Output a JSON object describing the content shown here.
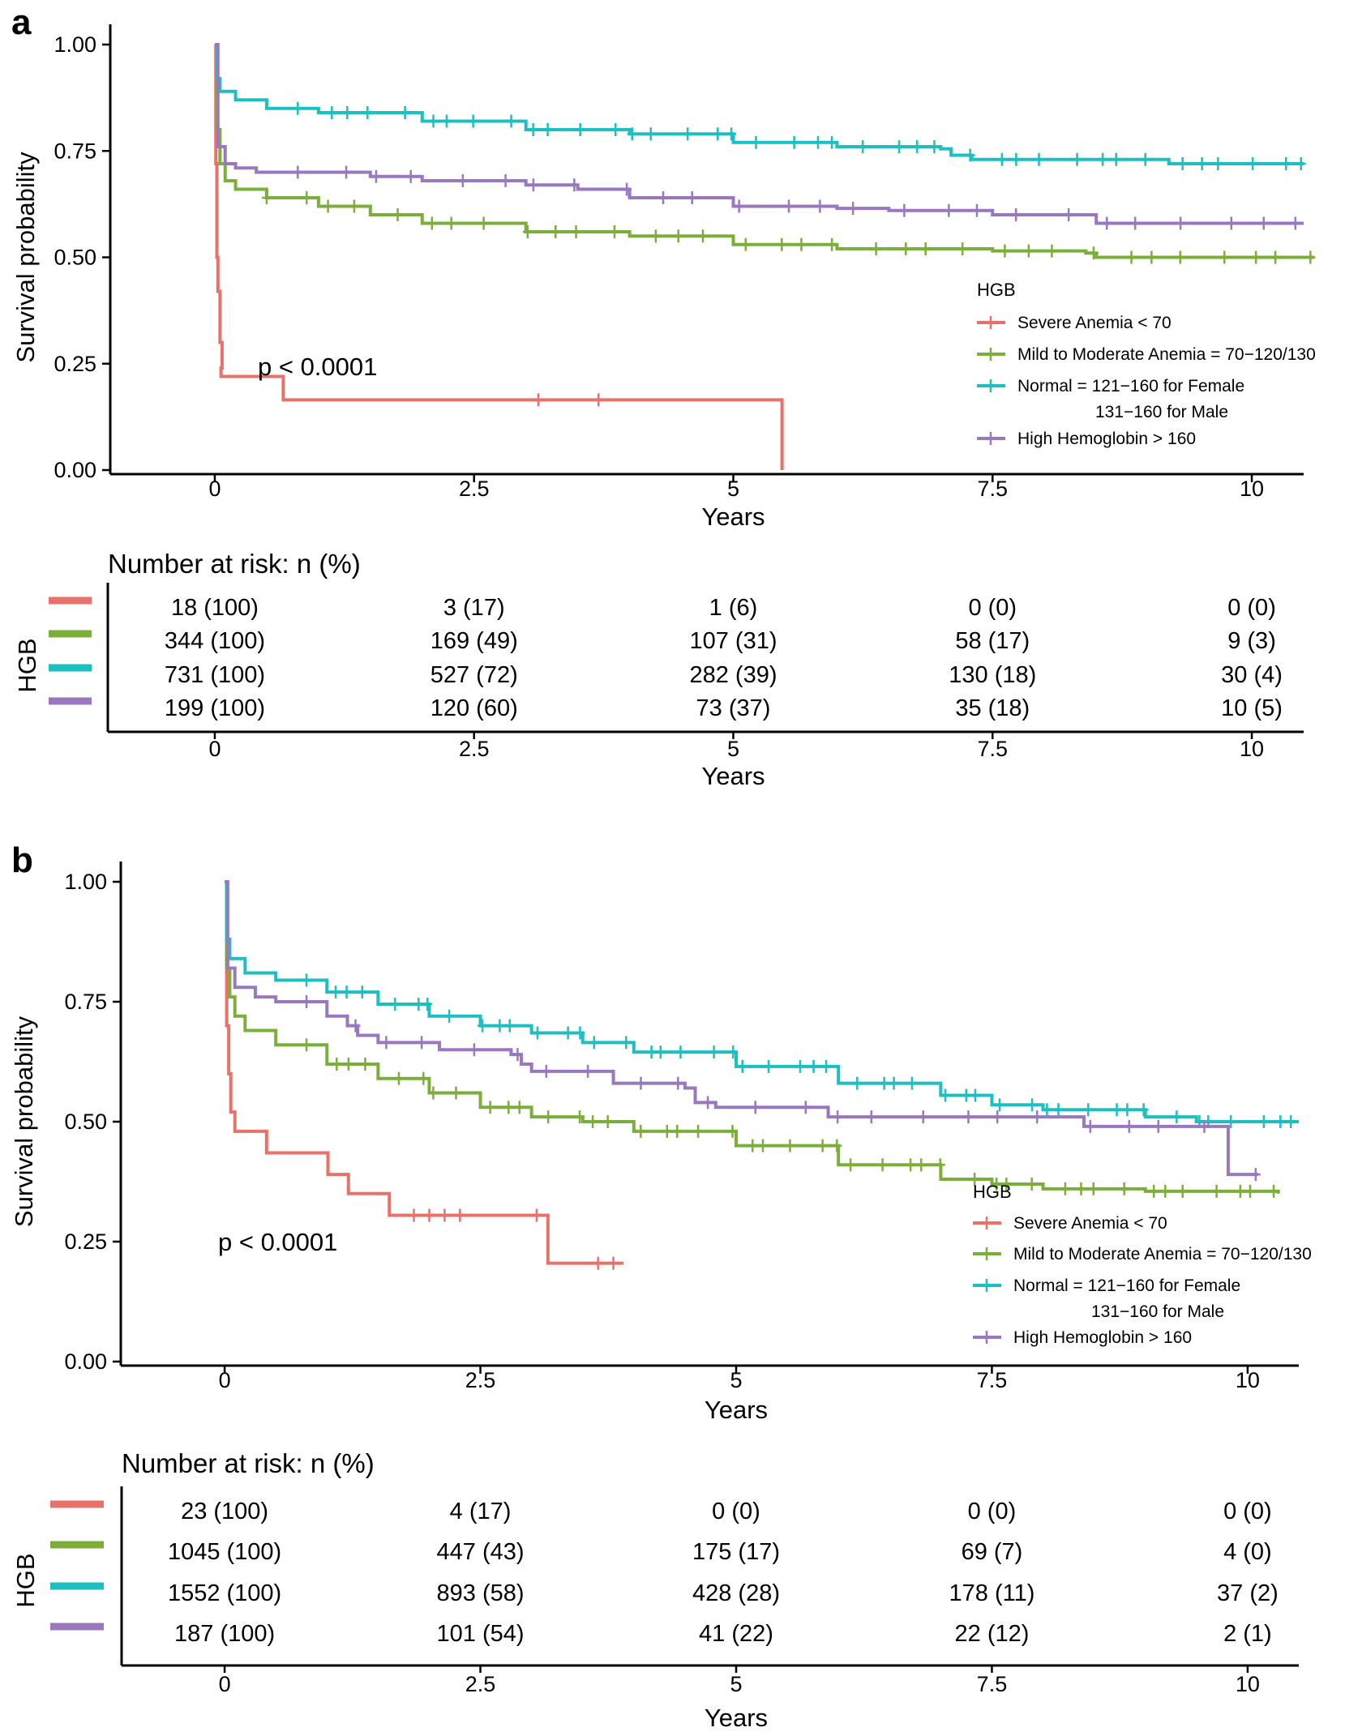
{
  "colors": {
    "severe": "#E8716A",
    "mild": "#7CAE3A",
    "normal": "#1DBFC0",
    "high": "#9A78C0"
  },
  "chart_data": [
    {
      "type": "line",
      "subtype": "kaplan-meier",
      "panel_label": "a",
      "ylabel": "Survival probability",
      "xlabel": "Years",
      "xlim": [
        -0.5,
        10.5
      ],
      "ylim": [
        0,
        1
      ],
      "x_ticks": [
        "0",
        "2.5",
        "5",
        "7.5",
        "10"
      ],
      "y_ticks": [
        "0.00",
        "0.25",
        "0.50",
        "0.75",
        "1.00"
      ],
      "p_value": "p < 0.0001",
      "legend_title": "HGB",
      "legend_position": "right",
      "series": [
        {
          "key": "severe",
          "name": "Severe Anemia < 70",
          "points": [
            [
              0,
              1.0
            ],
            [
              0.01,
              0.72
            ],
            [
              0.02,
              0.5
            ],
            [
              0.03,
              0.42
            ],
            [
              0.05,
              0.3
            ],
            [
              0.07,
              0.24
            ],
            [
              0.06,
              0.22
            ],
            [
              0.65,
              0.22
            ],
            [
              0.66,
              0.165
            ],
            [
              5.47,
              0.165
            ],
            [
              5.47,
              0.0
            ]
          ],
          "censor": [
            3.12,
            3.7
          ]
        },
        {
          "key": "mild",
          "name": "Mild to Moderate Anemia = 70−120/130",
          "points": [
            [
              0,
              1.0
            ],
            [
              0.02,
              0.8
            ],
            [
              0.05,
              0.72
            ],
            [
              0.1,
              0.68
            ],
            [
              0.2,
              0.66
            ],
            [
              0.5,
              0.64
            ],
            [
              1.0,
              0.62
            ],
            [
              1.5,
              0.6
            ],
            [
              2.0,
              0.58
            ],
            [
              3.0,
              0.56
            ],
            [
              4.0,
              0.55
            ],
            [
              5.0,
              0.53
            ],
            [
              6.0,
              0.52
            ],
            [
              7.5,
              0.515
            ],
            [
              8.4,
              0.51
            ],
            [
              8.5,
              0.5
            ],
            [
              10.6,
              0.5
            ]
          ],
          "censor_range": [
            0.5,
            10.6
          ],
          "censor_count": 34
        },
        {
          "key": "normal",
          "name": "Normal = 121−160  for Female\n131−160  for Male",
          "label_line1": "Normal = 121−160  for Female",
          "label_line2": "131−160  for Male",
          "points": [
            [
              0,
              1.0
            ],
            [
              0.02,
              0.92
            ],
            [
              0.05,
              0.89
            ],
            [
              0.2,
              0.87
            ],
            [
              0.5,
              0.85
            ],
            [
              1.0,
              0.84
            ],
            [
              2.0,
              0.82
            ],
            [
              3.0,
              0.8
            ],
            [
              4.0,
              0.79
            ],
            [
              5.0,
              0.77
            ],
            [
              6.0,
              0.76
            ],
            [
              7.0,
              0.755
            ],
            [
              7.1,
              0.74
            ],
            [
              7.3,
              0.73
            ],
            [
              9.0,
              0.73
            ],
            [
              9.2,
              0.72
            ],
            [
              10.5,
              0.72
            ]
          ],
          "censor_range": [
            0.8,
            10.5
          ],
          "censor_count": 40
        },
        {
          "key": "high",
          "name": "High Hemoglobin > 160",
          "points": [
            [
              0,
              1.0
            ],
            [
              0.03,
              0.76
            ],
            [
              0.1,
              0.72
            ],
            [
              0.2,
              0.71
            ],
            [
              0.4,
              0.7
            ],
            [
              1.5,
              0.69
            ],
            [
              2.0,
              0.68
            ],
            [
              3.0,
              0.67
            ],
            [
              3.5,
              0.66
            ],
            [
              4.0,
              0.64
            ],
            [
              5.0,
              0.62
            ],
            [
              6.0,
              0.615
            ],
            [
              6.5,
              0.61
            ],
            [
              7.5,
              0.6
            ],
            [
              8.4,
              0.6
            ],
            [
              8.5,
              0.58
            ],
            [
              10.5,
              0.58
            ]
          ],
          "censor_range": [
            0.8,
            10.5
          ],
          "censor_count": 26
        }
      ],
      "risk_table": {
        "title": "Number at risk: n (%)",
        "group_label": "HGB",
        "xlabel": "Years",
        "rows": [
          {
            "key": "severe",
            "values": [
              "18 (100)",
              "3 (17)",
              "1 (6)",
              "0 (0)",
              "0 (0)"
            ]
          },
          {
            "key": "mild",
            "values": [
              "344 (100)",
              "169 (49)",
              "107 (31)",
              "58 (17)",
              "9 (3)"
            ]
          },
          {
            "key": "normal",
            "values": [
              "731 (100)",
              "527 (72)",
              "282 (39)",
              "130 (18)",
              "30 (4)"
            ]
          },
          {
            "key": "high",
            "values": [
              "199 (100)",
              "120 (60)",
              "73 (37)",
              "35 (18)",
              "10 (5)"
            ]
          }
        ]
      }
    },
    {
      "type": "line",
      "subtype": "kaplan-meier",
      "panel_label": "b",
      "ylabel": "Survival probability",
      "xlabel": "Years",
      "xlim": [
        -0.5,
        10.5
      ],
      "ylim": [
        0,
        1
      ],
      "x_ticks": [
        "0",
        "2.5",
        "5",
        "7.5",
        "10"
      ],
      "y_ticks": [
        "0.00",
        "0.25",
        "0.50",
        "0.75",
        "1.00"
      ],
      "p_value": "p < 0.0001",
      "legend_title": "HGB",
      "legend_position": "bottom-right",
      "series": [
        {
          "key": "severe",
          "name": "Severe Anemia < 70",
          "points": [
            [
              0,
              1.0
            ],
            [
              0.02,
              0.7
            ],
            [
              0.04,
              0.6
            ],
            [
              0.06,
              0.52
            ],
            [
              0.1,
              0.48
            ],
            [
              0.4,
              0.48
            ],
            [
              0.41,
              0.435
            ],
            [
              1.0,
              0.435
            ],
            [
              1.01,
              0.39
            ],
            [
              1.2,
              0.39
            ],
            [
              1.21,
              0.35
            ],
            [
              1.6,
              0.35
            ],
            [
              1.61,
              0.305
            ],
            [
              3.15,
              0.305
            ],
            [
              3.16,
              0.205
            ],
            [
              3.9,
              0.205
            ]
          ],
          "censor": [
            1.85,
            2.0,
            2.15,
            2.3,
            3.05,
            3.65,
            3.8
          ]
        },
        {
          "key": "mild",
          "name": "Mild to Moderate Anemia = 70−120/130",
          "points": [
            [
              0,
              1.0
            ],
            [
              0.02,
              0.82
            ],
            [
              0.05,
              0.76
            ],
            [
              0.1,
              0.72
            ],
            [
              0.2,
              0.69
            ],
            [
              0.5,
              0.66
            ],
            [
              1.0,
              0.62
            ],
            [
              1.5,
              0.59
            ],
            [
              2.0,
              0.56
            ],
            [
              2.5,
              0.53
            ],
            [
              3.0,
              0.51
            ],
            [
              3.5,
              0.5
            ],
            [
              4.0,
              0.48
            ],
            [
              5.0,
              0.45
            ],
            [
              6.0,
              0.41
            ],
            [
              7.0,
              0.38
            ],
            [
              7.5,
              0.37
            ],
            [
              8.0,
              0.36
            ],
            [
              9.0,
              0.355
            ],
            [
              10.3,
              0.35
            ]
          ],
          "censor_range": [
            0.8,
            10.3
          ],
          "censor_count": 45
        },
        {
          "key": "normal",
          "name": "Normal = 121−160  for Female\n131−160  for Male",
          "label_line1": "Normal = 121−160  for Female",
          "label_line2": "131−160  for Male",
          "points": [
            [
              0,
              1.0
            ],
            [
              0.02,
              0.88
            ],
            [
              0.05,
              0.84
            ],
            [
              0.2,
              0.81
            ],
            [
              0.5,
              0.795
            ],
            [
              1.0,
              0.77
            ],
            [
              1.5,
              0.745
            ],
            [
              2.0,
              0.72
            ],
            [
              2.5,
              0.7
            ],
            [
              3.0,
              0.685
            ],
            [
              3.5,
              0.665
            ],
            [
              4.0,
              0.645
            ],
            [
              5.0,
              0.615
            ],
            [
              6.0,
              0.58
            ],
            [
              7.0,
              0.555
            ],
            [
              7.5,
              0.535
            ],
            [
              8.0,
              0.525
            ],
            [
              9.0,
              0.51
            ],
            [
              9.5,
              0.5
            ],
            [
              10.5,
              0.5
            ]
          ],
          "censor_range": [
            0.8,
            10.5
          ],
          "censor_count": 48
        },
        {
          "key": "high",
          "name": "High Hemoglobin > 160",
          "points": [
            [
              0,
              1.0
            ],
            [
              0.03,
              0.82
            ],
            [
              0.1,
              0.78
            ],
            [
              0.3,
              0.76
            ],
            [
              0.5,
              0.75
            ],
            [
              1.0,
              0.72
            ],
            [
              1.2,
              0.7
            ],
            [
              1.3,
              0.68
            ],
            [
              1.5,
              0.665
            ],
            [
              2.0,
              0.665
            ],
            [
              2.1,
              0.65
            ],
            [
              2.8,
              0.64
            ],
            [
              2.9,
              0.62
            ],
            [
              3.0,
              0.605
            ],
            [
              3.7,
              0.605
            ],
            [
              3.8,
              0.58
            ],
            [
              4.5,
              0.57
            ],
            [
              4.6,
              0.54
            ],
            [
              4.8,
              0.53
            ],
            [
              5.8,
              0.53
            ],
            [
              5.9,
              0.51
            ],
            [
              8.3,
              0.51
            ],
            [
              8.4,
              0.49
            ],
            [
              9.8,
              0.49
            ],
            [
              9.81,
              0.39
            ],
            [
              10.1,
              0.39
            ]
          ],
          "censor_range": [
            0.8,
            10.0
          ],
          "censor_count": 24
        }
      ],
      "risk_table": {
        "title": "Number at risk: n (%)",
        "group_label": "HGB",
        "xlabel": "Years",
        "rows": [
          {
            "key": "severe",
            "values": [
              "23 (100)",
              "4 (17)",
              "0 (0)",
              "0 (0)",
              "0 (0)"
            ]
          },
          {
            "key": "mild",
            "values": [
              "1045 (100)",
              "447 (43)",
              "175 (17)",
              "69 (7)",
              "4 (0)"
            ]
          },
          {
            "key": "normal",
            "values": [
              "1552 (100)",
              "893 (58)",
              "428 (28)",
              "178 (11)",
              "37 (2)"
            ]
          },
          {
            "key": "high",
            "values": [
              "187 (100)",
              "101 (54)",
              "41 (22)",
              "22 (12)",
              "2 (1)"
            ]
          }
        ]
      }
    }
  ]
}
